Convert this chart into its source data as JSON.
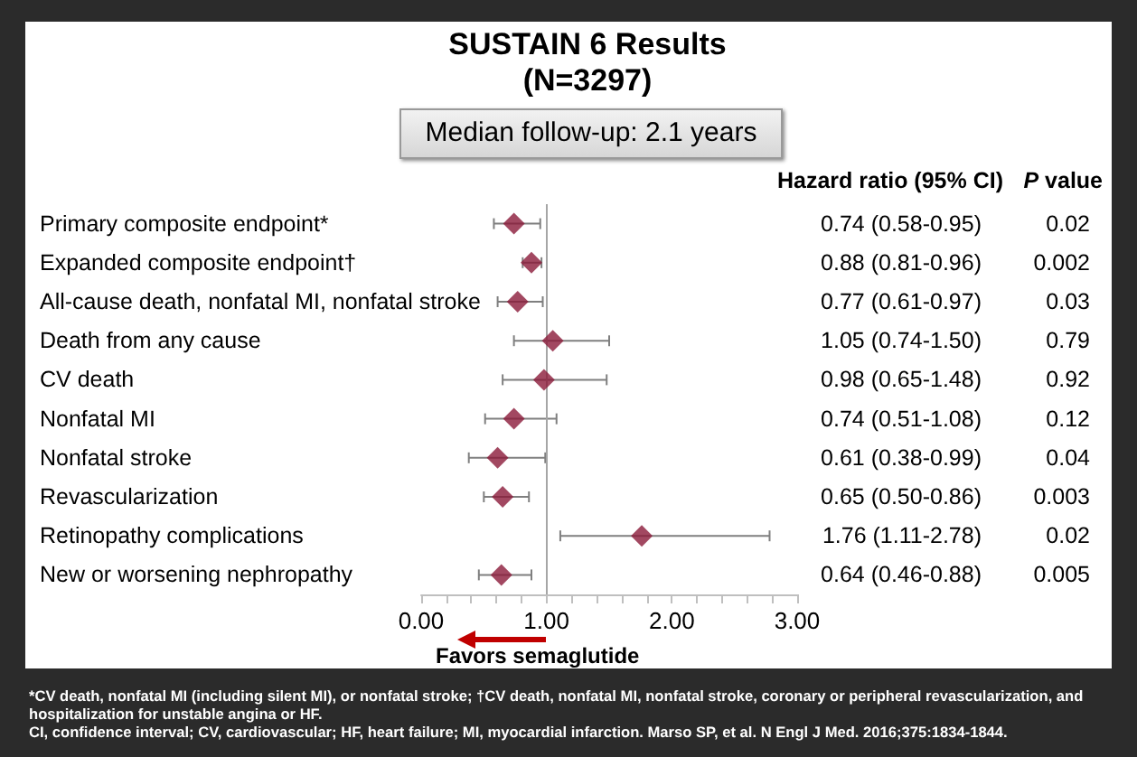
{
  "chart_data": {
    "type": "scatter",
    "title": "SUSTAIN 6 Results (N=3297)",
    "subtitle": "Median follow-up: 2.1 years",
    "orientation": "horizontal",
    "categories": [
      "Primary composite endpoint*",
      "Expanded composite endpoint†",
      "All-cause death, nonfatal MI, nonfatal stroke",
      "Death from any cause",
      "CV death",
      "Nonfatal MI",
      "Nonfatal stroke",
      "Revascularization",
      "Retinopathy complications",
      "New or worsening nephropathy"
    ],
    "series": [
      {
        "color": "#8b1a3a",
        "values": [
          0.74,
          0.88,
          0.77,
          1.05,
          0.98,
          0.74,
          0.61,
          0.65,
          1.76,
          0.64
        ],
        "errors": [
          [
            0.58,
            0.95
          ],
          [
            0.81,
            0.96
          ],
          [
            0.61,
            0.97
          ],
          [
            0.74,
            1.5
          ],
          [
            0.65,
            1.48
          ],
          [
            0.51,
            1.08
          ],
          [
            0.38,
            0.99
          ],
          [
            0.5,
            0.86
          ],
          [
            1.11,
            2.78
          ],
          [
            0.46,
            0.88
          ]
        ],
        "value_labels": [
          "0.74 (0.58-0.95)",
          "0.88 (0.81-0.96)",
          "0.77 (0.61-0.97)",
          "1.05 (0.74-1.50)",
          "0.98 (0.65-1.48)",
          "0.74 (0.51-1.08)",
          "0.61 (0.38-0.99)",
          "0.65 (0.50-0.86)",
          "1.76 (1.11-2.78)",
          "0.64 (0.46-0.88)"
        ]
      }
    ],
    "marker": "diamond",
    "xlim": [
      0,
      3
    ],
    "xticks": [
      {
        "value": 0,
        "label": "0.00"
      },
      {
        "value": 0.2,
        "label": null
      },
      {
        "value": 0.4,
        "label": null
      },
      {
        "value": 0.6,
        "label": null
      },
      {
        "value": 0.8,
        "label": null
      },
      {
        "value": 1,
        "label": "1.00"
      },
      {
        "value": 1.2,
        "label": null
      },
      {
        "value": 1.4,
        "label": null
      },
      {
        "value": 1.6,
        "label": null
      },
      {
        "value": 1.8,
        "label": null
      },
      {
        "value": 2,
        "label": "2.00"
      },
      {
        "value": 2.2,
        "label": null
      },
      {
        "value": 2.4,
        "label": null
      },
      {
        "value": 2.6,
        "label": null
      },
      {
        "value": 2.8,
        "label": null
      },
      {
        "value": 3,
        "label": "3.00"
      }
    ],
    "ref_lines": [
      {
        "axis": "x",
        "value": 1,
        "color": "#a6a6a6"
      }
    ],
    "grid": false,
    "annotations": [
      "Hazard ratio (95% CI)",
      "P value",
      "Favors semaglutide",
      "*CV death, nonfatal MI (including silent MI), or nonfatal stroke; †CV death, nonfatal MI, nonfatal stroke, coronary or peripheral revascularization, and hospitalization for unstable angina or HF.",
      "CI, confidence interval; CV, cardiovascular; HF, heart failure; MI, myocardial infarction. Marso SP, et al. N Engl J Med. 2016;375:1834-1844.",
      "0.02",
      "0.002",
      "0.03",
      "0.79",
      "0.92",
      "0.12",
      "0.04",
      "0.003",
      "0.02",
      "0.005"
    ]
  }
}
